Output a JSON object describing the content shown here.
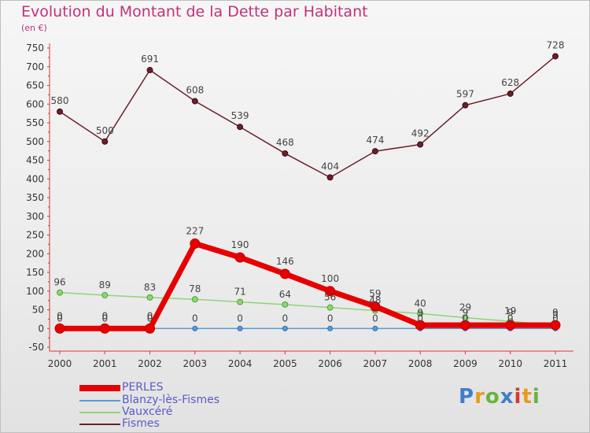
{
  "chart_data": {
    "type": "line",
    "title": "Evolution du Montant de la Dette par Habitant",
    "subtitle": "(en €)",
    "x": [
      "2000",
      "2001",
      "2002",
      "2003",
      "2004",
      "2005",
      "2006",
      "2007",
      "2008",
      "2009",
      "2010",
      "2011"
    ],
    "yticks": [
      750,
      700,
      650,
      600,
      550,
      500,
      450,
      400,
      350,
      300,
      250,
      200,
      150,
      100,
      50,
      0,
      -50
    ],
    "ylim": [
      -50,
      750
    ],
    "grid": false,
    "legend_position": "bottom-left",
    "series": [
      {
        "name": "PERLES",
        "color": "#e60000",
        "values": [
          0,
          0,
          0,
          227,
          190,
          146,
          100,
          59,
          9,
          9,
          9,
          9
        ]
      },
      {
        "name": "Blanzy-lès-Fismes",
        "color": "#5a9bd4",
        "values": [
          0,
          0,
          0,
          0,
          0,
          0,
          0,
          0,
          0,
          0,
          0,
          0
        ]
      },
      {
        "name": "Vauxcéré",
        "color": "#8fd47a",
        "values": [
          96,
          89,
          83,
          78,
          71,
          64,
          56,
          48,
          40,
          29,
          19,
          9
        ]
      },
      {
        "name": "Fismes",
        "color": "#6b1f2a",
        "values": [
          580,
          500,
          691,
          608,
          539,
          468,
          404,
          474,
          492,
          597,
          628,
          728
        ]
      }
    ],
    "data_labels": {
      "PERLES": [
        "0",
        "0",
        "0",
        "227",
        "190",
        "146",
        "100",
        "59",
        "9",
        "9",
        "9",
        "9"
      ],
      "Blanzy-lès-Fismes": [
        "0",
        "0",
        "0",
        "0",
        "0",
        "0",
        "0",
        "0",
        "0",
        "0",
        "0",
        "0"
      ],
      "Vauxcéré": [
        "96",
        "89",
        "83",
        "78",
        "71",
        "64",
        "56",
        "48",
        "40",
        "29",
        "19",
        "9"
      ],
      "Fismes": [
        "580",
        "500",
        "691",
        "608",
        "539",
        "468",
        "404",
        "474",
        "492",
        "597",
        "628",
        "728"
      ]
    }
  },
  "legend": [
    {
      "label": "PERLES",
      "color": "#e60000"
    },
    {
      "label": "Blanzy-lès-Fismes",
      "color": "#5a9bd4"
    },
    {
      "label": "Vauxcéré",
      "color": "#8fd47a"
    },
    {
      "label": "Fismes",
      "color": "#6b1f2a"
    }
  ],
  "logo": {
    "letters": [
      "P",
      "r",
      "o",
      "x",
      "i",
      "t",
      "i"
    ]
  }
}
